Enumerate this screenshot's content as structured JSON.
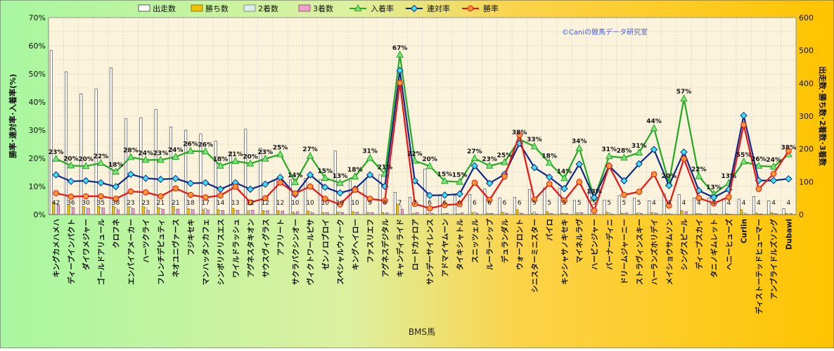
{
  "chart_data": {
    "type": "bar",
    "xlabel": "BMS馬",
    "ylabel_left": "勝率･連対率･入着率(%)",
    "ylabel_right": "出走数･勝ち数･2着数･3着数",
    "watermark": "©Caniの競馬データ研究室",
    "ylim_left": [
      0,
      70
    ],
    "ylim_right": [
      0,
      600
    ],
    "left_ticks": [
      "0%",
      "10%",
      "20%",
      "30%",
      "40%",
      "50%",
      "60%",
      "70%"
    ],
    "right_ticks": [
      "0",
      "100",
      "200",
      "300",
      "400",
      "500",
      "600"
    ],
    "grid": true,
    "legend_position": "top",
    "colors": {
      "starts": "#ffffff",
      "wins": "#f2c200",
      "second": "#ddeeee",
      "third": "#f0a0d0",
      "place_rate": "#22aa22",
      "place_marker": "#7ee07e",
      "top2_rate": "#0c2a8c",
      "top2_marker": "#40e0f0",
      "win_rate": "#ee1111",
      "win_marker": "#ff9933",
      "plot_bg": "#fcf3dc",
      "grid": "#bbbbbb"
    },
    "legend": [
      {
        "key": "starts",
        "label": "出走数",
        "kind": "bar"
      },
      {
        "key": "wins",
        "label": "勝ち数",
        "kind": "bar"
      },
      {
        "key": "second",
        "label": "2着数",
        "kind": "bar"
      },
      {
        "key": "third",
        "label": "3着数",
        "kind": "bar"
      },
      {
        "key": "place_rate",
        "label": "入着率",
        "kind": "line"
      },
      {
        "key": "top2_rate",
        "label": "連対率",
        "kind": "line"
      },
      {
        "key": "win_rate",
        "label": "勝率",
        "kind": "line"
      }
    ],
    "categories": [
      "キングカメハメハ",
      "ディープインパクト",
      "ダイワメジャー",
      "ゴールドアリュール",
      "クロフネ",
      "エンパイアメーカー",
      "ハーツクライ",
      "フレンチデピュティ",
      "ネオユニヴァース",
      "フジキセキ",
      "マンハッタンカフェ",
      "シンボリクリスエス",
      "ワイルドラッシュ",
      "アグネスタキオン",
      "サウスヴィグラス",
      "アフリート",
      "サクラバクシンオー",
      "ヴィクトワールピサ",
      "ゼンノロブロイ",
      "スペシャルウィーク",
      "キングヘイロー",
      "ファスリエフ",
      "アグネスデジタル",
      "キャンディライド",
      "ロードカナロア",
      "サンデーサイレンス",
      "アドマイヤムーン",
      "タイキシャトル",
      "スニッツェル",
      "ルーラーシップ",
      "デュランダル",
      "ウォーフロント",
      "シニスターミニスター",
      "パイロ",
      "キンシャサノキセキ",
      "マイネルラヴ",
      "ハービンジャー",
      "バーナーディニ",
      "ドリームジャーニー",
      "ストラヴィンスキー",
      "ハーランズホリデイ",
      "メイショウサムソン",
      "シングスピール",
      "ディープスカイ",
      "タニノギムレット",
      "ヘニーヒューズ",
      "Curlin",
      "ディストーテッドヒューマー",
      "アンブライドルズソング",
      "Dubawi"
    ],
    "starts": [
      500,
      435,
      368,
      382,
      447,
      292,
      295,
      320,
      267,
      257,
      246,
      224,
      191,
      260,
      203,
      106,
      106,
      110,
      107,
      194,
      103,
      107,
      121,
      68,
      53,
      139,
      61,
      58,
      61,
      78,
      51,
      53,
      76,
      81,
      80,
      43,
      72,
      44,
      58,
      50,
      42,
      64,
      61,
      51,
      51,
      49,
      47,
      55,
      42,
      18
    ],
    "start_labels": [
      "42",
      "36",
      "30",
      "35",
      "38",
      "23",
      "23",
      "21",
      "21",
      "18",
      "17",
      "14",
      "13",
      "12",
      "12",
      "12",
      "10",
      "10",
      "10",
      "10",
      "10",
      "9",
      "8",
      "7",
      "7",
      "6",
      "6",
      "6",
      "6",
      "6",
      "6",
      "6",
      "5",
      "5",
      "5",
      "5",
      "5",
      "5",
      "5",
      "5",
      "4",
      "4",
      "4",
      "4",
      "4",
      "4",
      "4",
      "4",
      "4",
      "4"
    ],
    "wins": [
      38,
      28,
      24,
      25,
      25,
      24,
      24,
      21,
      25,
      18,
      15,
      15,
      19,
      11,
      12,
      12,
      8,
      11,
      6,
      7,
      9,
      6,
      6,
      32,
      2,
      3,
      2,
      2,
      6,
      4,
      7,
      15,
      4,
      9,
      4,
      5,
      1,
      7,
      4,
      4,
      6,
      2,
      12,
      3,
      2,
      3,
      15,
      5,
      6,
      4
    ],
    "second": [
      33,
      24,
      20,
      20,
      20,
      22,
      20,
      18,
      14,
      16,
      18,
      12,
      12,
      12,
      10,
      7,
      4,
      8,
      5,
      8,
      6,
      6,
      4,
      28,
      4,
      6,
      3,
      3,
      7,
      3,
      5,
      5,
      8,
      4,
      3,
      6,
      2,
      5,
      3,
      5,
      5,
      3,
      7,
      3,
      1,
      2,
      5,
      2,
      3,
      0
    ],
    "third": [
      28,
      21,
      19,
      20,
      15,
      18,
      13,
      16,
      17,
      15,
      14,
      12,
      13,
      13,
      12,
      11,
      9,
      5,
      6,
      6,
      7,
      6,
      5,
      16,
      6,
      4,
      4,
      5,
      4,
      4,
      4,
      4,
      2,
      3,
      3,
      6,
      1,
      2,
      5,
      3,
      4,
      1,
      9,
      2,
      2,
      1,
      2,
      2,
      3,
      3
    ],
    "place_rate": [
      19.8,
      17.4,
      17.2,
      18.3,
      15.2,
      20.4,
      19.4,
      19.4,
      20.5,
      22.6,
      22.4,
      17.3,
      19.0,
      18.1,
      19.8,
      21.4,
      11.5,
      20.8,
      13.0,
      11.2,
      13.5,
      20.1,
      14.4,
      56.8,
      19.1,
      17.2,
      11.9,
      11.6,
      20.0,
      17.3,
      18.6,
      26.7,
      24.2,
      18.4,
      12.9,
      23.6,
      5.8,
      20.7,
      20.2,
      22.0,
      30.7,
      11.2,
      41.2,
      13.6,
      7.3,
      11.2,
      18.8,
      17.3,
      17.0,
      21.4
    ],
    "top2_rate": [
      14.1,
      11.8,
      12.0,
      11.3,
      9.9,
      14.3,
      12.9,
      12.5,
      12.8,
      11.1,
      11.3,
      9.0,
      11.3,
      9.0,
      10.8,
      13.2,
      7.1,
      14.1,
      9.7,
      7.7,
      9.1,
      14.1,
      10.0,
      51.2,
      12.0,
      6.8,
      6.9,
      7.3,
      17.3,
      11.1,
      14.3,
      25.3,
      16.7,
      13.3,
      9.2,
      17.9,
      6.0,
      17.3,
      12.0,
      18.0,
      23.1,
      10.3,
      22.2,
      8.5,
      6.1,
      8.9,
      35.2,
      12.1,
      12.1,
      12.7
    ],
    "win_rate": [
      7.6,
      6.4,
      6.5,
      6.5,
      5.6,
      8.2,
      7.9,
      6.5,
      9.3,
      7.0,
      6.1,
      6.8,
      9.9,
      4.3,
      5.8,
      11.4,
      7.5,
      10.0,
      5.6,
      3.6,
      8.8,
      5.6,
      4.9,
      46.8,
      3.8,
      2.2,
      3.4,
      3.7,
      11.3,
      5.2,
      13.5,
      28.3,
      5.3,
      10.9,
      5.0,
      11.6,
      1.4,
      17.3,
      7.0,
      8.1,
      14.3,
      3.2,
      19.8,
      5.9,
      4.0,
      6.2,
      31.9,
      9.1,
      14.5,
      22.6
    ],
    "place_labels": [
      "23%",
      "20%",
      "20%",
      "22%",
      "18%",
      "28%",
      "24%",
      "23%",
      "24%",
      "26%",
      "26%",
      "18%",
      "21%",
      "20%",
      "23%",
      "25%",
      "14%",
      "27%",
      "15%",
      "13%",
      "18%",
      "31%",
      "21%",
      "67%",
      "22%",
      "20%",
      "15%",
      "15%",
      "27%",
      "23%",
      "25%",
      "38%",
      "33%",
      "18%",
      "14%",
      "34%",
      "13%",
      "31%",
      "28%",
      "31%",
      "44%",
      "20%",
      "57%",
      "22%",
      "13%",
      "13%",
      "55%",
      "26%",
      "24%",
      "38%"
    ]
  }
}
